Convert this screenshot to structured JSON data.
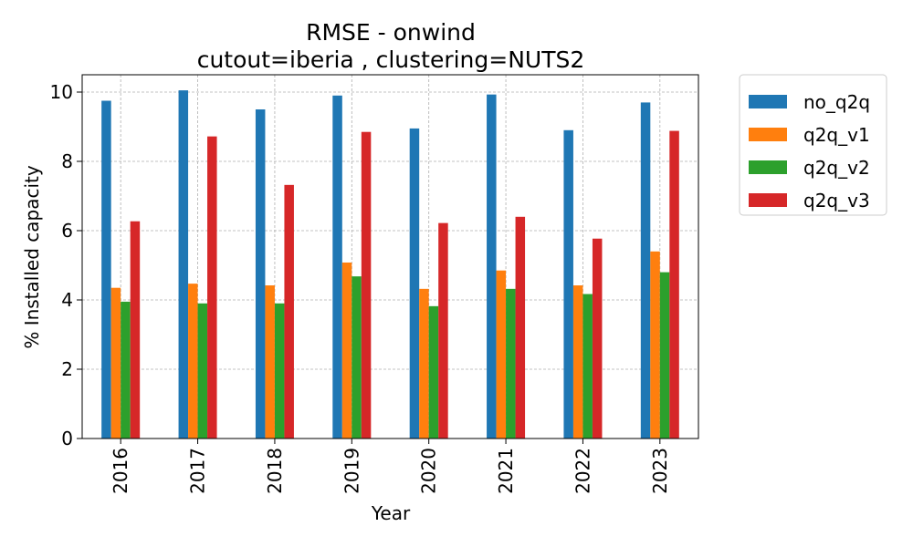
{
  "chart_data": {
    "type": "bar",
    "title": "RMSE - onwind",
    "subtitle": "cutout=iberia , clustering=NUTS2",
    "xlabel": "Year",
    "ylabel": "% Installed capacity",
    "categories": [
      "2016",
      "2017",
      "2018",
      "2019",
      "2020",
      "2021",
      "2022",
      "2023"
    ],
    "ylim": [
      0,
      10.5
    ],
    "yticks": [
      0,
      2,
      4,
      6,
      8,
      10
    ],
    "grid": true,
    "legend_position": "outside-right",
    "series": [
      {
        "name": "no_q2q",
        "color": "#1f77b4",
        "values": [
          9.75,
          10.05,
          9.5,
          9.9,
          8.95,
          9.93,
          8.9,
          9.7
        ]
      },
      {
        "name": "q2q_v1",
        "color": "#ff7f0e",
        "values": [
          4.35,
          4.47,
          4.42,
          5.08,
          4.32,
          4.85,
          4.42,
          5.4
        ]
      },
      {
        "name": "q2q_v2",
        "color": "#2ca02c",
        "values": [
          3.95,
          3.9,
          3.9,
          4.68,
          3.82,
          4.32,
          4.17,
          4.8
        ]
      },
      {
        "name": "q2q_v3",
        "color": "#d62728",
        "values": [
          6.27,
          8.72,
          7.32,
          8.85,
          6.22,
          6.4,
          5.77,
          8.88
        ]
      }
    ]
  }
}
